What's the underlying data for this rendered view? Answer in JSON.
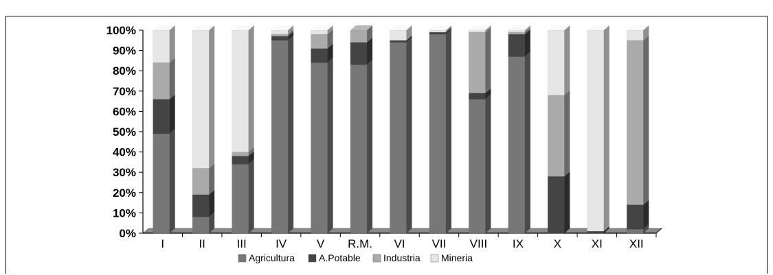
{
  "header": {
    "title_fragment": ""
  },
  "chart_data": {
    "type": "bar",
    "stacked": true,
    "percent_stacked": true,
    "three_d": true,
    "categories": [
      "I",
      "II",
      "III",
      "IV",
      "V",
      "R.M.",
      "VI",
      "VII",
      "VIII",
      "IX",
      "X",
      "XI",
      "XII"
    ],
    "series": [
      {
        "name": "Agricultura",
        "color": "#777777",
        "values": [
          49,
          8,
          34,
          95,
          84,
          83,
          94,
          98,
          66,
          87,
          0,
          0,
          2
        ]
      },
      {
        "name": "A.Potable",
        "color": "#444444",
        "values": [
          17,
          11,
          4,
          2,
          7,
          11,
          1,
          1,
          3,
          11,
          28,
          1,
          12
        ]
      },
      {
        "name": "Industria",
        "color": "#aaaaaa",
        "values": [
          18,
          13,
          2,
          1,
          7,
          6,
          0,
          0,
          30,
          1,
          40,
          0,
          81
        ]
      },
      {
        "name": "Mineria",
        "color": "#e6e6e6",
        "values": [
          16,
          68,
          60,
          2,
          2,
          0,
          5,
          1,
          1,
          1,
          32,
          99,
          5
        ]
      }
    ],
    "y_ticks": [
      "0%",
      "10%",
      "20%",
      "30%",
      "40%",
      "50%",
      "60%",
      "70%",
      "80%",
      "90%",
      "100%"
    ],
    "ylim": [
      0,
      100
    ],
    "grid": false,
    "legend_position": "bottom",
    "title": "",
    "xlabel": "",
    "ylabel": ""
  }
}
